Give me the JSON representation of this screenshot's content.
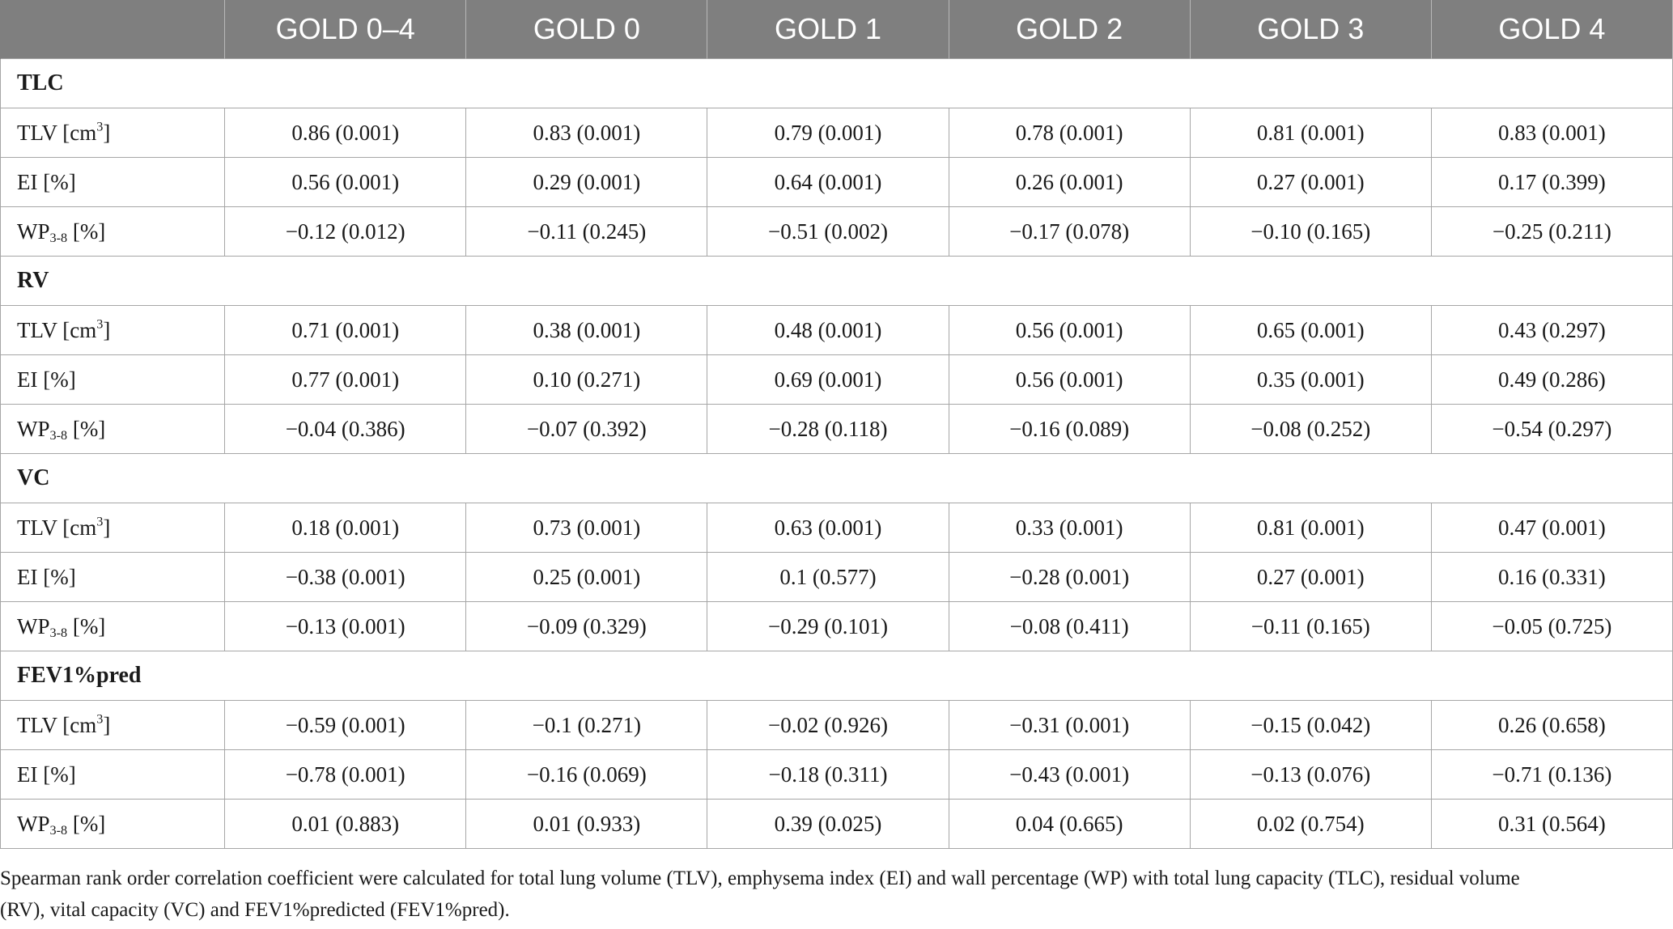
{
  "header": {
    "corner": "",
    "columns": [
      "GOLD 0–4",
      "GOLD 0",
      "GOLD 1",
      "GOLD 2",
      "GOLD 3",
      "GOLD 4"
    ]
  },
  "sections": [
    {
      "title": "TLC",
      "rows": [
        {
          "label": "TLV [cm",
          "label_sup": "3",
          "label_tail": "]",
          "values": [
            "0.86 (0.001)",
            "0.83 (0.001)",
            "0.79 (0.001)",
            "0.78 (0.001)",
            "0.81 (0.001)",
            "0.83 (0.001)"
          ]
        },
        {
          "label": "EI [%]",
          "values": [
            "0.56 (0.001)",
            "0.29 (0.001)",
            "0.64 (0.001)",
            "0.26 (0.001)",
            "0.27 (0.001)",
            "0.17 (0.399)"
          ]
        },
        {
          "label": "WP",
          "label_sub": "3-8",
          "label_tail": " [%]",
          "values": [
            "−0.12 (0.012)",
            "−0.11 (0.245)",
            "−0.51 (0.002)",
            "−0.17 (0.078)",
            "−0.10 (0.165)",
            "−0.25 (0.211)"
          ]
        }
      ]
    },
    {
      "title": "RV",
      "rows": [
        {
          "label": "TLV [cm",
          "label_sup": "3",
          "label_tail": "]",
          "values": [
            "0.71 (0.001)",
            "0.38 (0.001)",
            "0.48 (0.001)",
            "0.56 (0.001)",
            "0.65 (0.001)",
            "0.43 (0.297)"
          ]
        },
        {
          "label": "EI [%]",
          "values": [
            "0.77 (0.001)",
            "0.10 (0.271)",
            "0.69 (0.001)",
            "0.56 (0.001)",
            "0.35 (0.001)",
            "0.49 (0.286)"
          ]
        },
        {
          "label": "WP",
          "label_sub": "3-8",
          "label_tail": " [%]",
          "values": [
            "−0.04 (0.386)",
            "−0.07 (0.392)",
            "−0.28 (0.118)",
            "−0.16 (0.089)",
            "−0.08 (0.252)",
            "−0.54 (0.297)"
          ]
        }
      ]
    },
    {
      "title": "VC",
      "rows": [
        {
          "label": "TLV [cm",
          "label_sup": "3",
          "label_tail": "]",
          "values": [
            "0.18 (0.001)",
            "0.73 (0.001)",
            "0.63 (0.001)",
            "0.33 (0.001)",
            "0.81 (0.001)",
            "0.47 (0.001)"
          ]
        },
        {
          "label": "EI [%]",
          "values": [
            "−0.38 (0.001)",
            "0.25 (0.001)",
            "0.1 (0.577)",
            "−0.28 (0.001)",
            "0.27 (0.001)",
            "0.16 (0.331)"
          ]
        },
        {
          "label": "WP",
          "label_sub": "3-8",
          "label_tail": " [%]",
          "values": [
            "−0.13 (0.001)",
            "−0.09 (0.329)",
            "−0.29 (0.101)",
            "−0.08 (0.411)",
            "−0.11 (0.165)",
            "−0.05 (0.725)"
          ]
        }
      ]
    },
    {
      "title": "FEV1%pred",
      "rows": [
        {
          "label": "TLV [cm",
          "label_sup": "3",
          "label_tail": "]",
          "values": [
            "−0.59 (0.001)",
            "−0.1 (0.271)",
            "−0.02 (0.926)",
            "−0.31 (0.001)",
            "−0.15 (0.042)",
            "0.26 (0.658)"
          ]
        },
        {
          "label": "EI [%]",
          "values": [
            "−0.78 (0.001)",
            "−0.16 (0.069)",
            "−0.18 (0.311)",
            "−0.43 (0.001)",
            "−0.13 (0.076)",
            "−0.71 (0.136)"
          ]
        },
        {
          "label": "WP",
          "label_sub": "3-8",
          "label_tail": " [%]",
          "values": [
            "0.01 (0.883)",
            "0.01 (0.933)",
            "0.39 (0.025)",
            "0.04 (0.665)",
            "0.02 (0.754)",
            "0.31 (0.564)"
          ]
        }
      ]
    }
  ],
  "footnote": {
    "line1": "Spearman rank order correlation coefficient were calculated for total lung volume (TLV), emphysema index (EI) and wall percentage (WP) with total lung capacity (TLC), residual volume",
    "line2": "(RV), vital capacity (VC) and FEV1%predicted (FEV1%pred)."
  },
  "colors": {
    "header_bg": "#7f7f7f",
    "header_text": "#ffffff",
    "grid": "#a6a6a6",
    "text": "#1a1a1a"
  }
}
